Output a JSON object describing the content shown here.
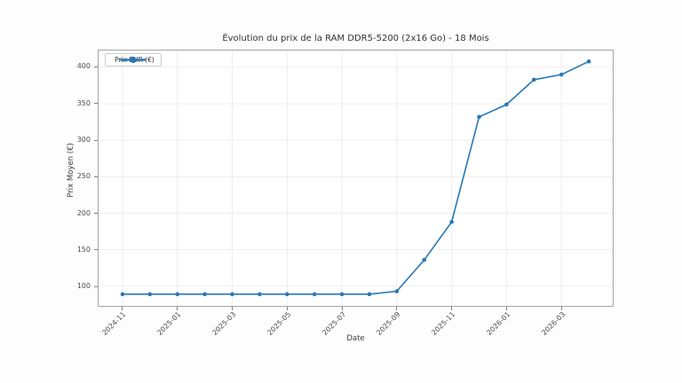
{
  "page": {
    "background": "#fdfdfd"
  },
  "chart_data": {
    "type": "line",
    "title": "Évolution du prix de la RAM DDR5-5200 (2x16 Go) - 18 Mois",
    "xlabel": "Date",
    "ylabel": "Prix Moyen (€)",
    "legend_label": "Prix EUR (€)",
    "legend_position": "upper-left",
    "categories": [
      "2024-11",
      "2024-12",
      "2025-01",
      "2025-02",
      "2025-03",
      "2025-04",
      "2025-05",
      "2025-06",
      "2025-07",
      "2025-08",
      "2025-09",
      "2025-10",
      "2025-11",
      "2025-12",
      "2026-01",
      "2026-02",
      "2026-03",
      "2026-04"
    ],
    "series": [
      {
        "name": "Prix EUR (€)",
        "values": [
          89,
          89,
          89,
          89,
          89,
          89,
          89,
          89,
          89,
          89,
          93,
          136,
          188,
          332,
          349,
          383,
          390,
          408
        ]
      }
    ],
    "ylim": [
      73,
      423
    ],
    "yticks": [
      100,
      150,
      200,
      250,
      300,
      350,
      400
    ],
    "xtick_every": 2,
    "tick_label_rotation": 45,
    "grid": true,
    "line_color": "#2878b5",
    "grid_color": "#ededed",
    "spine_color": "#a6a6a6",
    "tick_color": "#808080",
    "text_color": "#4d4d4d"
  }
}
